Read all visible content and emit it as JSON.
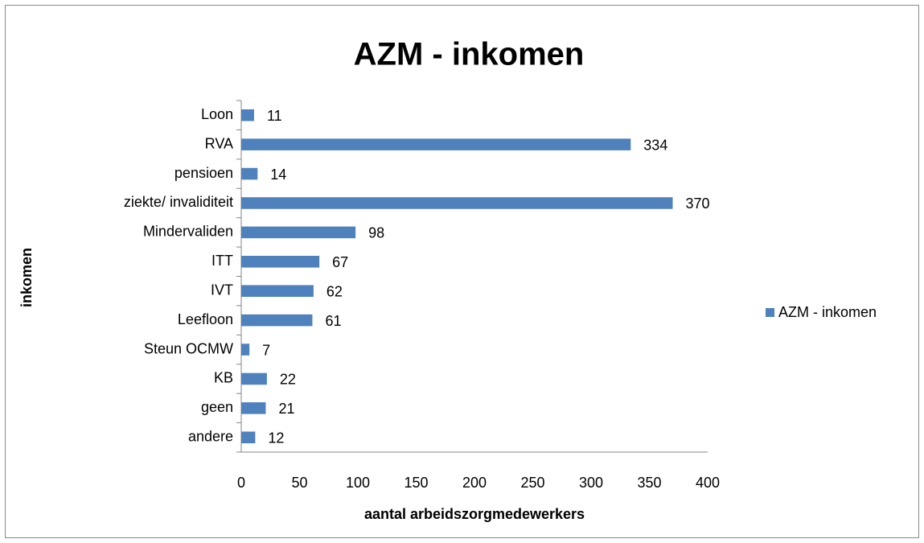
{
  "chart_data": {
    "type": "bar",
    "orientation": "horizontal",
    "title": "AZM - inkomen",
    "x_label": "aantal arbeidszorgmedewerkers",
    "y_label": "inkomen",
    "categories": [
      "Loon",
      "RVA",
      "pensioen",
      "ziekte/ invaliditeit",
      "Mindervaliden",
      "ITT",
      "IVT",
      "Leefloon",
      "Steun OCMW",
      "KB",
      "geen",
      "andere"
    ],
    "series": [
      {
        "name": "AZM - inkomen",
        "color": "#4f81bd",
        "values": [
          11,
          334,
          14,
          370,
          98,
          67,
          62,
          61,
          7,
          22,
          21,
          12
        ]
      }
    ],
    "xlim": [
      0,
      400
    ],
    "xticks": [
      0,
      50,
      100,
      150,
      200,
      250,
      300,
      350,
      400
    ],
    "grid": false,
    "legend": "right"
  }
}
